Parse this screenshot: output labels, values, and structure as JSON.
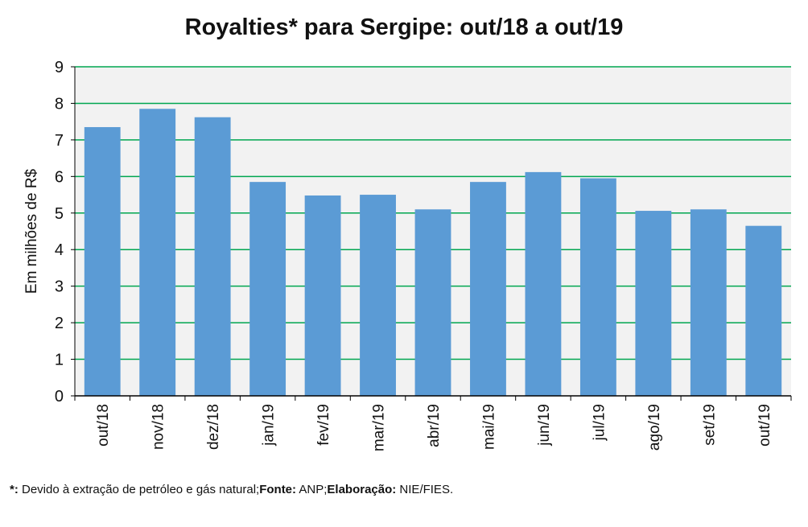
{
  "chart_data": {
    "type": "bar",
    "title": "Royalties* para Sergipe: out/18 a out/19",
    "ylabel": "Em milhões de R$",
    "xlabel": "",
    "categories": [
      "out/18",
      "nov/18",
      "dez/18",
      "jan/19",
      "fev/19",
      "mar/19",
      "abr/19",
      "mai/19",
      "jun/19",
      "jul/19",
      "ago/19",
      "set/19",
      "out/19"
    ],
    "values": [
      7.35,
      7.85,
      7.62,
      5.85,
      5.48,
      5.5,
      5.1,
      5.85,
      6.12,
      5.95,
      5.06,
      5.1,
      4.65
    ],
    "ylim": [
      0,
      9
    ],
    "yticks": [
      0,
      1,
      2,
      3,
      4,
      5,
      6,
      7,
      8,
      9
    ],
    "grid": true,
    "colors": {
      "bar": "#5B9BD5",
      "grid": "#00A650",
      "plot_bg": "#F2F2F2",
      "axis": "#000000"
    }
  },
  "footnote": {
    "marker": "*:",
    "marker_text": " Devido à extração de petróleo e gás natural;",
    "source_label": "Fonte:",
    "source_text": " ANP;",
    "credit_label": "Elaboração:",
    "credit_text": " NIE/FIES."
  }
}
